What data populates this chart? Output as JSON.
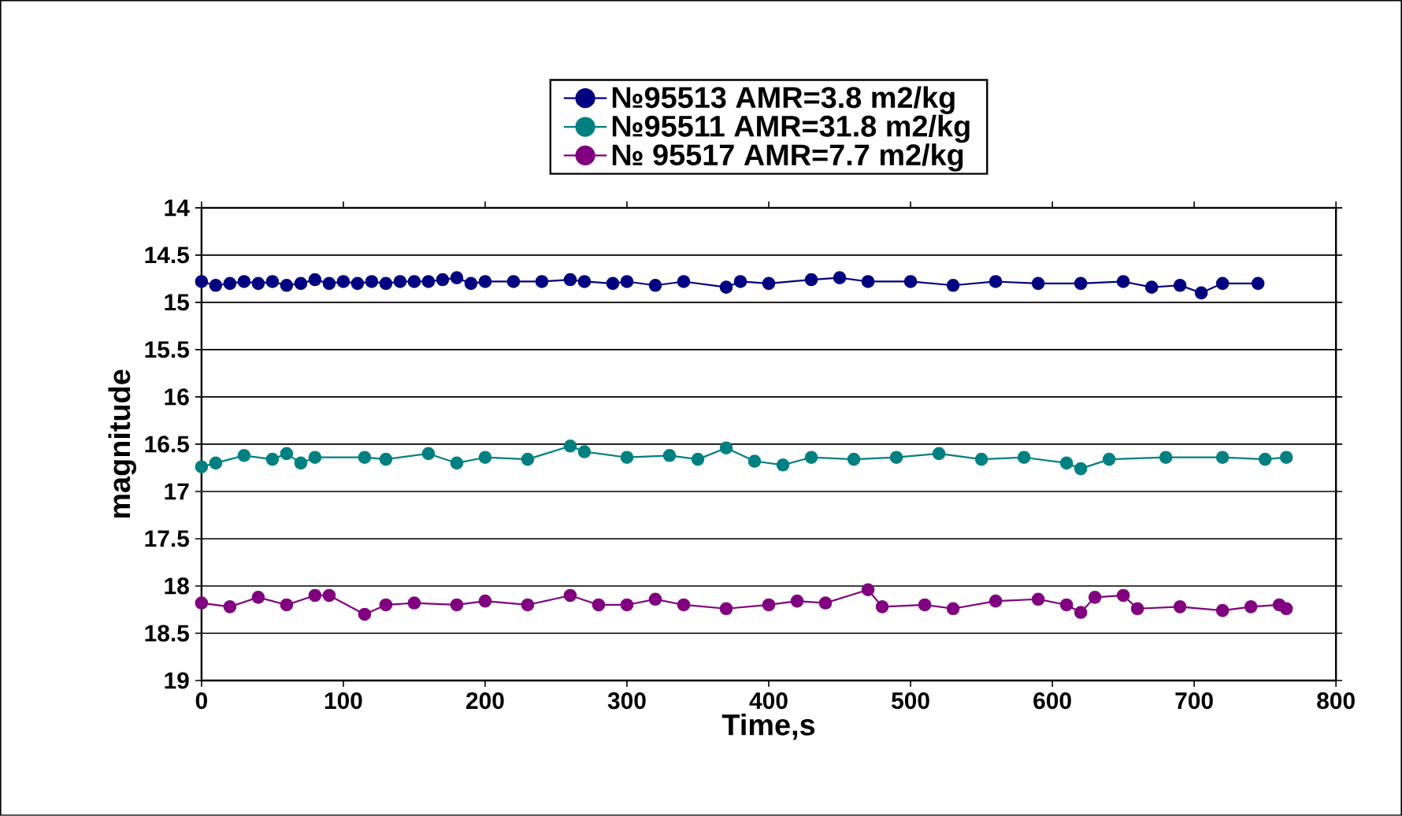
{
  "chart_data": {
    "type": "line",
    "xlabel": "Time,s",
    "ylabel": "magnitude",
    "xlim": [
      0,
      800
    ],
    "xticks": [
      0,
      100,
      200,
      300,
      400,
      500,
      600,
      700,
      800
    ],
    "ylim": [
      19,
      14
    ],
    "yticks": [
      14,
      14.5,
      15,
      15.5,
      16,
      16.5,
      17,
      17.5,
      18,
      18.5,
      19
    ],
    "grid": "y",
    "legend": "top",
    "marker": "circle",
    "line_style": "solid",
    "series": [
      {
        "name": "№95513 AMR=3.8 m2/kg",
        "color": "#000080",
        "x": [
          0,
          10,
          20,
          30,
          40,
          50,
          60,
          70,
          80,
          90,
          100,
          110,
          120,
          130,
          140,
          150,
          160,
          170,
          180,
          190,
          200,
          220,
          240,
          260,
          270,
          290,
          300,
          320,
          340,
          370,
          380,
          400,
          430,
          450,
          470,
          500,
          530,
          560,
          590,
          620,
          650,
          670,
          690,
          705,
          720,
          745
        ],
        "values": [
          14.78,
          14.82,
          14.8,
          14.78,
          14.8,
          14.78,
          14.82,
          14.8,
          14.76,
          14.8,
          14.78,
          14.8,
          14.78,
          14.8,
          14.78,
          14.78,
          14.78,
          14.76,
          14.74,
          14.8,
          14.78,
          14.78,
          14.78,
          14.76,
          14.78,
          14.8,
          14.78,
          14.82,
          14.78,
          14.84,
          14.78,
          14.8,
          14.76,
          14.74,
          14.78,
          14.78,
          14.82,
          14.78,
          14.8,
          14.8,
          14.78,
          14.84,
          14.82,
          14.9,
          14.8,
          14.8
        ]
      },
      {
        "name": "№95511 AMR=31.8 m2/kg",
        "color": "#008080",
        "x": [
          0,
          10,
          30,
          50,
          60,
          70,
          80,
          115,
          130,
          160,
          180,
          200,
          230,
          260,
          270,
          300,
          330,
          350,
          370,
          390,
          410,
          430,
          460,
          490,
          520,
          550,
          580,
          610,
          620,
          640,
          680,
          720,
          750,
          765
        ],
        "values": [
          16.74,
          16.7,
          16.62,
          16.66,
          16.6,
          16.7,
          16.64,
          16.64,
          16.66,
          16.6,
          16.7,
          16.64,
          16.66,
          16.52,
          16.58,
          16.64,
          16.62,
          16.66,
          16.54,
          16.68,
          16.72,
          16.64,
          16.66,
          16.64,
          16.6,
          16.66,
          16.64,
          16.7,
          16.76,
          16.66,
          16.64,
          16.64,
          16.66,
          16.64
        ]
      },
      {
        "name": "№ 95517 AMR=7.7 m2/kg",
        "color": "#800080",
        "x": [
          0,
          20,
          40,
          60,
          80,
          90,
          115,
          130,
          150,
          180,
          200,
          230,
          260,
          280,
          300,
          320,
          340,
          370,
          400,
          420,
          440,
          470,
          480,
          510,
          530,
          560,
          590,
          610,
          620,
          630,
          650,
          660,
          690,
          720,
          740,
          760,
          765
        ],
        "values": [
          18.18,
          18.22,
          18.12,
          18.2,
          18.1,
          18.1,
          18.3,
          18.2,
          18.18,
          18.2,
          18.16,
          18.2,
          18.1,
          18.2,
          18.2,
          18.14,
          18.2,
          18.24,
          18.2,
          18.16,
          18.18,
          18.04,
          18.22,
          18.2,
          18.24,
          18.16,
          18.14,
          18.2,
          18.28,
          18.12,
          18.1,
          18.24,
          18.22,
          18.26,
          18.22,
          18.2,
          18.24
        ]
      }
    ]
  }
}
